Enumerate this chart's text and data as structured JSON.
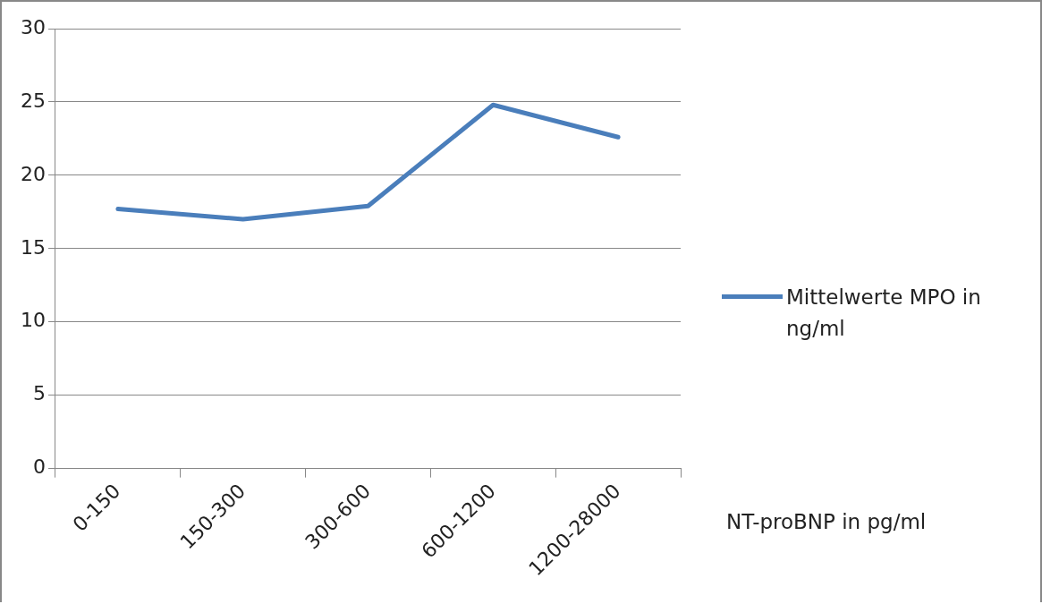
{
  "chart_data": {
    "type": "line",
    "xlabel": "NT-proBNP in pg/ml",
    "categories": [
      "0-150",
      "150-300",
      "300-600",
      "600-1200",
      "1200-28000"
    ],
    "series": [
      {
        "name": "Mittelwerte MPO in ng/ml",
        "color": "#4a7ebb",
        "values": [
          17.7,
          17.0,
          17.9,
          24.8,
          22.6
        ]
      }
    ],
    "ylim": [
      0,
      30
    ],
    "yticks": [
      0,
      5,
      10,
      15,
      20,
      25,
      30
    ],
    "grid": "y",
    "legend": "right",
    "marker": "none",
    "line_style": "solid"
  }
}
